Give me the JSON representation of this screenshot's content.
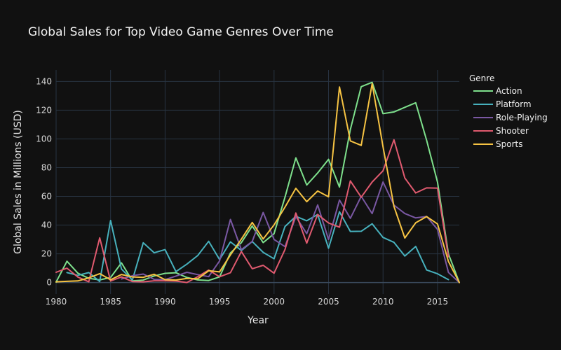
{
  "chart_data": {
    "type": "line",
    "title": "Global Sales for Top Video Game Genres Over Time",
    "xlabel": "Year",
    "ylabel": "Global Sales in Millions (USD)",
    "xlim": [
      1980,
      2017
    ],
    "ylim": [
      -8,
      148
    ],
    "xticks": [
      1980,
      1985,
      1990,
      1995,
      2000,
      2005,
      2010,
      2015
    ],
    "yticks": [
      0,
      20,
      40,
      60,
      80,
      100,
      120,
      140
    ],
    "grid": true,
    "legend": {
      "title": "Genre",
      "position": "right"
    },
    "background": "#111111",
    "series": [
      {
        "name": "Action",
        "color": "#7ee08c",
        "x": [
          1980,
          1981,
          1982,
          1983,
          1984,
          1985,
          1986,
          1987,
          1988,
          1989,
          1990,
          1991,
          1992,
          1993,
          1994,
          1995,
          1996,
          1997,
          1998,
          1999,
          2000,
          2001,
          2002,
          2003,
          2004,
          2005,
          2006,
          2007,
          2008,
          2009,
          2010,
          2011,
          2012,
          2013,
          2014,
          2015,
          2016,
          2017
        ],
        "y": [
          0.3,
          14.8,
          6.5,
          2.9,
          1.8,
          3.5,
          13.7,
          1.1,
          1.7,
          4.6,
          6.4,
          6.8,
          3.5,
          1.8,
          1.4,
          3.9,
          20.6,
          27.8,
          39.4,
          27.8,
          34.0,
          59.4,
          86.8,
          67.9,
          76.3,
          85.8,
          66.5,
          106.5,
          136.4,
          139.4,
          117.6,
          118.8,
          122.0,
          125.2,
          99.0,
          69.9,
          19.9,
          0.0
        ]
      },
      {
        "name": "Platform",
        "color": "#47b1bd",
        "x": [
          1981,
          1982,
          1983,
          1984,
          1985,
          1986,
          1987,
          1988,
          1989,
          1990,
          1991,
          1992,
          1993,
          1994,
          1995,
          1996,
          1997,
          1998,
          1999,
          2000,
          2001,
          2002,
          2003,
          2004,
          2005,
          2006,
          2007,
          2008,
          2009,
          2010,
          2011,
          2012,
          2013,
          2014,
          2015,
          2016
        ],
        "y": [
          6.9,
          5.0,
          6.9,
          0.7,
          43.2,
          9.4,
          1.7,
          27.7,
          20.7,
          22.9,
          7.6,
          12.8,
          18.8,
          28.7,
          16.0,
          28.3,
          22.3,
          28.5,
          21.0,
          16.5,
          39.0,
          46.1,
          43.0,
          47.4,
          23.9,
          49.3,
          35.6,
          35.7,
          40.9,
          31.4,
          28.0,
          18.4,
          25.1,
          8.7,
          6.1,
          2.0
        ]
      },
      {
        "name": "Role-Playing",
        "color": "#7a58a3",
        "x": [
          1986,
          1987,
          1988,
          1989,
          1990,
          1991,
          1992,
          1993,
          1994,
          1995,
          1996,
          1997,
          1998,
          1999,
          2000,
          2001,
          2002,
          2003,
          2004,
          2005,
          2006,
          2007,
          2008,
          2009,
          2010,
          2011,
          2012,
          2013,
          2014,
          2015,
          2016,
          2017
        ],
        "y": [
          2.5,
          4.7,
          5.9,
          2.2,
          2.0,
          4.5,
          7.1,
          5.5,
          4.1,
          15.0,
          43.9,
          22.9,
          28.6,
          48.8,
          30.0,
          25.0,
          45.9,
          34.0,
          54.0,
          30.0,
          57.4,
          44.7,
          60.0,
          48.0,
          70.0,
          53.9,
          48.0,
          45.0,
          46.0,
          37.0,
          7.0,
          0.0
        ]
      },
      {
        "name": "Shooter",
        "color": "#e05a6f",
        "x": [
          1980,
          1981,
          1982,
          1983,
          1984,
          1985,
          1986,
          1987,
          1988,
          1989,
          1990,
          1991,
          1992,
          1993,
          1994,
          1995,
          1996,
          1997,
          1998,
          1999,
          2000,
          2001,
          2002,
          2003,
          2004,
          2005,
          2006,
          2007,
          2008,
          2009,
          2010,
          2011,
          2012,
          2013,
          2014,
          2015,
          2016
        ],
        "y": [
          7.1,
          10.0,
          3.8,
          0.5,
          31.1,
          1.0,
          3.9,
          0.7,
          0.5,
          1.2,
          1.2,
          1.0,
          0.0,
          4.1,
          8.6,
          4.0,
          6.8,
          21.6,
          9.6,
          12.0,
          6.5,
          23.0,
          48.4,
          27.4,
          47.4,
          41.5,
          38.5,
          70.8,
          59.4,
          70.0,
          77.8,
          99.4,
          72.8,
          62.4,
          65.9,
          65.7,
          17.9
        ]
      },
      {
        "name": "Sports",
        "color": "#f6c343",
        "x": [
          1980,
          1981,
          1982,
          1983,
          1984,
          1985,
          1986,
          1987,
          1988,
          1989,
          1990,
          1991,
          1992,
          1993,
          1994,
          1995,
          1996,
          1997,
          1998,
          1999,
          2000,
          2001,
          2002,
          2003,
          2004,
          2005,
          2006,
          2007,
          2008,
          2009,
          2010,
          2011,
          2012,
          2013,
          2014,
          2015,
          2016,
          2017
        ],
        "y": [
          0.5,
          0.8,
          1.1,
          3.2,
          6.2,
          1.9,
          5.6,
          3.9,
          3.6,
          5.7,
          2.0,
          1.7,
          2.8,
          2.6,
          8.2,
          7.4,
          19.2,
          30.2,
          41.8,
          30.3,
          40.1,
          52.5,
          65.6,
          56.3,
          63.7,
          59.7,
          136.2,
          98.6,
          95.5,
          138.5,
          94.5,
          53.0,
          31.0,
          41.6,
          45.9,
          40.8,
          14.6,
          0.0
        ]
      }
    ]
  }
}
